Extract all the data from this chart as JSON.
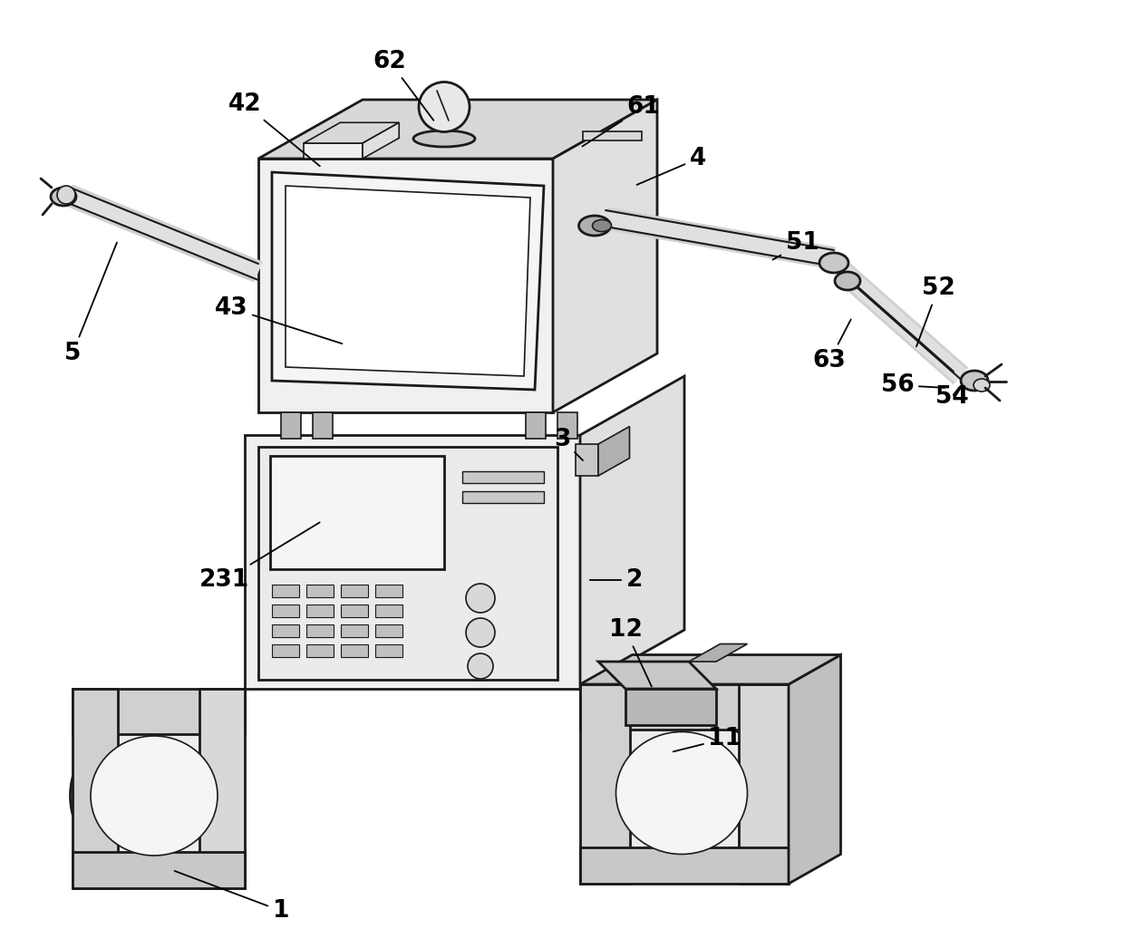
{
  "background_color": "#ffffff",
  "line_color": "#1a1a1a",
  "lw_main": 2.0,
  "lw_thin": 1.2,
  "lw_arm": 12,
  "colors": {
    "face_front": "#f0f0f0",
    "face_top": "#d8d8d8",
    "face_right": "#e0e0e0",
    "face_dark": "#c0c0c0",
    "screen_bg": "#f8f8f8",
    "screen_inner": "#e8e8e8",
    "arm_fill": "#d8d8d8",
    "arm_edge": "#1a1a1a",
    "wheel_outer": "#e8e8e8",
    "wheel_inner": "#d0d0d0",
    "pillar": "#c8c8c8"
  },
  "figsize": [
    12.4,
    10.46
  ],
  "dpi": 100
}
